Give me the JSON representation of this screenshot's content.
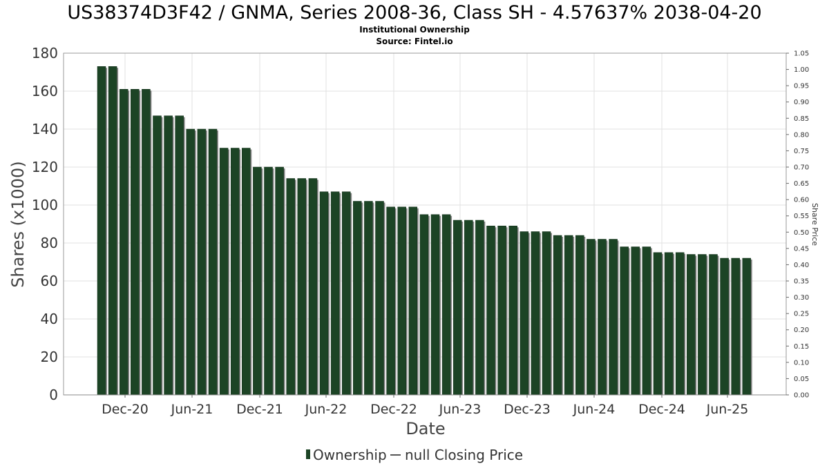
{
  "chart_data": {
    "type": "bar",
    "title": "US38374D3F42 / GNMA, Series 2008-36, Class SH - 4.57637% 2038-04-20",
    "subtitle_lines": [
      "Institutional Ownership",
      "Source: Fintel.io"
    ],
    "xlabel": "Date",
    "ylabel": "Shares (x1000)",
    "ylabel_right": "Share Price",
    "ylim": [
      0,
      180
    ],
    "y_ticks": [
      "0",
      "20",
      "40",
      "60",
      "80",
      "100",
      "120",
      "140",
      "160",
      "180"
    ],
    "ylim_right": [
      0,
      1.05
    ],
    "y_ticks_right": [
      "0.00",
      "0.05",
      "0.10",
      "0.15",
      "0.20",
      "0.25",
      "0.30",
      "0.35",
      "0.40",
      "0.45",
      "0.50",
      "0.55",
      "0.60",
      "0.65",
      "0.70",
      "0.75",
      "0.80",
      "0.85",
      "0.90",
      "0.95",
      "1.00",
      "1.05"
    ],
    "x_tick_labels": [
      "Dec-20",
      "Jun-21",
      "Dec-21",
      "Jun-22",
      "Dec-22",
      "Jun-23",
      "Dec-23",
      "Jun-24",
      "Dec-24",
      "Jun-25"
    ],
    "grid": true,
    "legend_position": "bottom",
    "series": [
      {
        "name": "Ownership",
        "color": "#1c4425",
        "values": [
          173,
          173,
          161,
          161,
          161,
          147,
          147,
          147,
          140,
          140,
          140,
          130,
          130,
          130,
          120,
          120,
          120,
          114,
          114,
          114,
          107,
          107,
          107,
          102,
          102,
          102,
          99,
          99,
          99,
          95,
          95,
          95,
          92,
          92,
          92,
          89,
          89,
          89,
          86,
          86,
          86,
          84,
          84,
          84,
          82,
          82,
          82,
          78,
          78,
          78,
          75,
          75,
          75,
          74,
          74,
          74,
          72,
          72,
          72
        ]
      },
      {
        "name": "null Closing Price",
        "color": "#555555",
        "values": []
      }
    ]
  }
}
